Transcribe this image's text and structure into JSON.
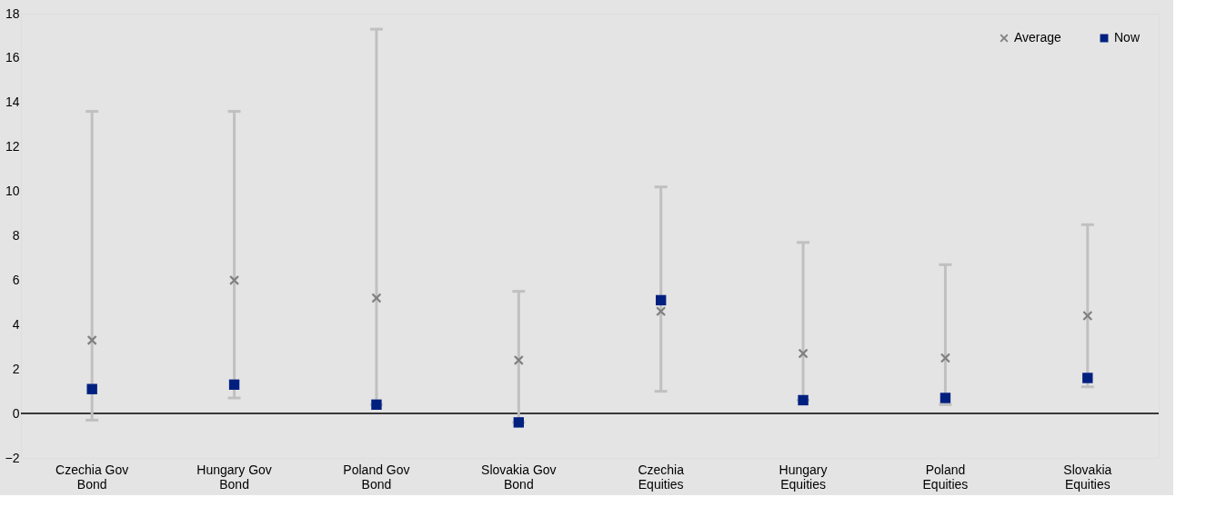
{
  "chart_data": {
    "type": "scatter",
    "categories": [
      "Czechia Gov Bond",
      "Hungary Gov Bond",
      "Poland Gov Bond",
      "Slovakia Gov Bond",
      "Czechia Equities",
      "Hungary Equities",
      "Poland Equities",
      "Slovakia Equities"
    ],
    "series": [
      {
        "name": "Average",
        "color": "#808080",
        "marker": "cross",
        "values": [
          3.3,
          6.0,
          5.2,
          2.4,
          4.6,
          2.7,
          2.5,
          4.4
        ]
      },
      {
        "name": "Now",
        "color": "#002080",
        "marker": "square",
        "values": [
          1.1,
          1.3,
          0.4,
          -0.4,
          5.1,
          0.6,
          0.7,
          1.6
        ],
        "errors": [
          [
            -0.3,
            13.6
          ],
          [
            0.7,
            13.6
          ],
          [
            0.4,
            17.3
          ],
          [
            -0.4,
            5.5
          ],
          [
            1.0,
            10.2
          ],
          [
            0.6,
            7.7
          ],
          [
            0.4,
            6.7
          ],
          [
            1.2,
            8.5
          ]
        ]
      }
    ],
    "ylim": [
      -2,
      18
    ],
    "yticks": [
      -2,
      0,
      2,
      4,
      6,
      8,
      10,
      12,
      14,
      16,
      18
    ],
    "ref_lines": [
      {
        "axis": "y",
        "value": 0,
        "color": "#000000"
      }
    ],
    "grid": false,
    "legend": "top right"
  }
}
